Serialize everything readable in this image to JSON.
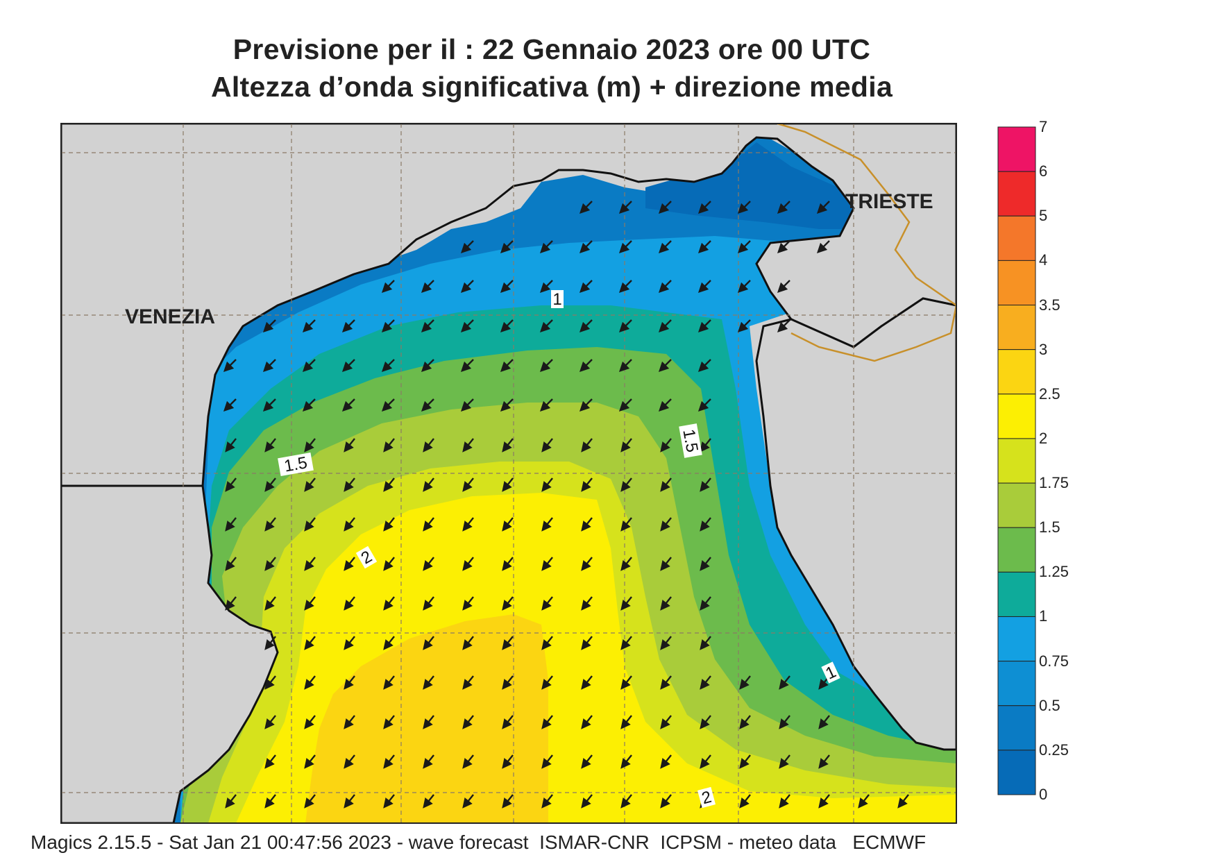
{
  "title": {
    "line1": "Previsione per il  :  22  Gennaio  2023   ore 00 UTC",
    "line2": "Altezza d’onda significativa (m) + direzione media"
  },
  "map": {
    "place_labels": [
      "VENEZIA",
      "TRIESTE"
    ],
    "contour_labels": [
      "1",
      "1.5",
      "2",
      "1.5",
      "1",
      "2"
    ],
    "land_color": "#d2d2d2",
    "coast_color": "#111111",
    "border_color": "#c8902a",
    "grid_color": "#8a7a66",
    "arrow_color": "#1a1a1a",
    "arrow_direction": "south-west"
  },
  "legend": {
    "labels": [
      "7",
      "6",
      "5",
      "4",
      "3.5",
      "3",
      "2.5",
      "2",
      "1.75",
      "1.5",
      "1.25",
      "1",
      "0.75",
      "0.5",
      "0.25",
      "0"
    ],
    "colors": [
      "#ee1465",
      "#ee2a2a",
      "#f4772a",
      "#f79223",
      "#f8ae1f",
      "#fbd512",
      "#fcef03",
      "#d6e21c",
      "#a9cc3a",
      "#6cbb4c",
      "#0eab9a",
      "#13a0e2",
      "#0e8fd3",
      "#0a7bc4",
      "#066bb7"
    ]
  },
  "footer": "Magics 2.15.5 - Sat Jan 21 00:47:56 2023 - wave forecast  ISMAR-CNR  ICPSM - meteo data   ECMWF"
}
